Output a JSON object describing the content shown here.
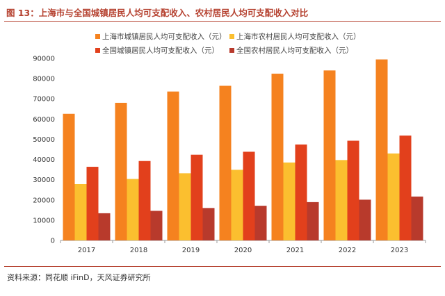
{
  "figure": {
    "title": "图 13：上海市与全国城镇居民人均可支配收入、农村居民人均可支配收入对比",
    "source": "资料来源：同花顺 iFinD，天风证券研究所"
  },
  "colors": {
    "title": "#b5412f",
    "series": [
      "#f5821f",
      "#fbbf2f",
      "#e2401c",
      "#b83a2c"
    ]
  },
  "chart_data": {
    "type": "bar",
    "categories": [
      "2017",
      "2018",
      "2019",
      "2020",
      "2021",
      "2022",
      "2023"
    ],
    "series": [
      {
        "name": "上海市城镇居民人均可支配收入（元）",
        "values": [
          62596,
          68034,
          73615,
          76437,
          82429,
          84034,
          89477
        ]
      },
      {
        "name": "上海市农村居民人均可支配收入（元）",
        "values": [
          27825,
          30375,
          33195,
          34911,
          38521,
          39729,
          42988
        ]
      },
      {
        "name": "全国城镇居民人均可支配收入（元）",
        "values": [
          36396,
          39251,
          42359,
          43834,
          47412,
          49283,
          51821
        ]
      },
      {
        "name": "全国农村居民人均可支配收入（元）",
        "values": [
          13432,
          14617,
          16021,
          17131,
          18931,
          20133,
          21691
        ]
      }
    ],
    "ylim": [
      0,
      90000
    ],
    "yticks": [
      0,
      10000,
      20000,
      30000,
      40000,
      50000,
      60000,
      70000,
      80000,
      90000
    ],
    "legend_position": "top",
    "grid": false
  }
}
